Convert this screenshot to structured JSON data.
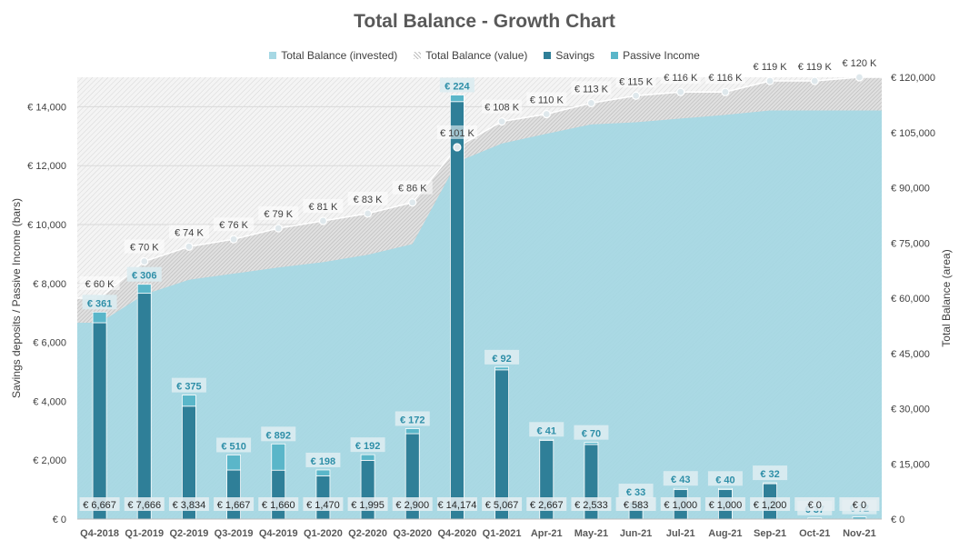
{
  "chart_data": {
    "type": "bar",
    "title": "Total Balance - Growth Chart",
    "ylabel_left": "Savings deposits / Passive Income (bars)",
    "ylabel_right": "Total Balance (area)",
    "categories": [
      "Q4-2018",
      "Q1-2019",
      "Q2-2019",
      "Q3-2019",
      "Q4-2019",
      "Q1-2020",
      "Q2-2020",
      "Q3-2020",
      "Q4-2020",
      "Q1-2021",
      "Apr-21",
      "May-21",
      "Jun-21",
      "Jul-21",
      "Aug-21",
      "Sep-21",
      "Oct-21",
      "Nov-21"
    ],
    "left_axis": {
      "min": 0,
      "max": 15000,
      "ticks": [
        0,
        2000,
        4000,
        6000,
        8000,
        10000,
        12000,
        14000
      ],
      "tick_labels": [
        "€ 0",
        "€ 2,000",
        "€ 4,000",
        "€ 6,000",
        "€ 8,000",
        "€ 10,000",
        "€ 12,000",
        "€ 14,000"
      ]
    },
    "right_axis": {
      "min": 0,
      "max": 120000,
      "ticks": [
        0,
        15000,
        30000,
        45000,
        60000,
        75000,
        90000,
        105000,
        120000
      ],
      "tick_labels": [
        "€ 0",
        "€ 15,000",
        "€ 30,000",
        "€ 45,000",
        "€ 60,000",
        "€ 75,000",
        "€ 90,000",
        "€ 105,000",
        "€ 120,000"
      ]
    },
    "series": [
      {
        "name": "Total Balance (invested)",
        "axis": "right",
        "kind": "area",
        "color": "#a6d8e4",
        "values": [
          53334,
          61000,
          65000,
          66667,
          68327,
          69797,
          71792,
          74692,
          97000,
          102000,
          104667,
          107200,
          107783,
          108783,
          109783,
          110983,
          110983,
          110983
        ]
      },
      {
        "name": "Total Balance (value)",
        "axis": "right",
        "kind": "area",
        "color": "#c4c4c4",
        "values": [
          60000,
          70000,
          74000,
          76000,
          79000,
          81000,
          83000,
          86000,
          101000,
          108000,
          110000,
          113000,
          115000,
          116000,
          116000,
          119000,
          119000,
          120000
        ],
        "labels": [
          "€ 60 K",
          "€ 70 K",
          "€ 74 K",
          "€ 76 K",
          "€ 79 K",
          "€ 81 K",
          "€ 83 K",
          "€ 86 K",
          "€ 101 K",
          "€ 108 K",
          "€ 110 K",
          "€ 113 K",
          "€ 115 K",
          "€ 116 K",
          "€ 116 K",
          "€ 119 K",
          "€ 119 K",
          "€ 120 K"
        ]
      },
      {
        "name": "Savings",
        "axis": "left",
        "kind": "bar",
        "color": "#2f7f98",
        "values": [
          6667,
          7666,
          3834,
          1667,
          1660,
          1470,
          1995,
          2900,
          14174,
          5067,
          2667,
          2533,
          583,
          1000,
          1000,
          1200,
          0,
          0
        ],
        "labels": [
          "€ 6,667",
          "€ 7,666",
          "€ 3,834",
          "€ 1,667",
          "€ 1,660",
          "€ 1,470",
          "€ 1,995",
          "€ 2,900",
          "€ 14,174",
          "€ 5,067",
          "€ 2,667",
          "€ 2,533",
          "€ 583",
          "€ 1,000",
          "€ 1,000",
          "€ 1,200",
          "€ 0",
          "€ 0"
        ]
      },
      {
        "name": "Passive Income",
        "axis": "left",
        "kind": "bar",
        "color": "#5ab6c9",
        "values": [
          361,
          306,
          375,
          510,
          892,
          198,
          192,
          172,
          224,
          92,
          41,
          70,
          33,
          43,
          40,
          32,
          37,
          72
        ],
        "labels": [
          "€ 361",
          "€ 306",
          "€ 375",
          "€ 510",
          "€ 892",
          "€ 198",
          "€ 192",
          "€ 172",
          "€ 224",
          "€ 92",
          "€ 41",
          "€ 70",
          "€ 33",
          "€ 43",
          "€ 40",
          "€ 32",
          "€ 37",
          "€ 72"
        ]
      }
    ],
    "legend_position": "top",
    "grid": true
  }
}
